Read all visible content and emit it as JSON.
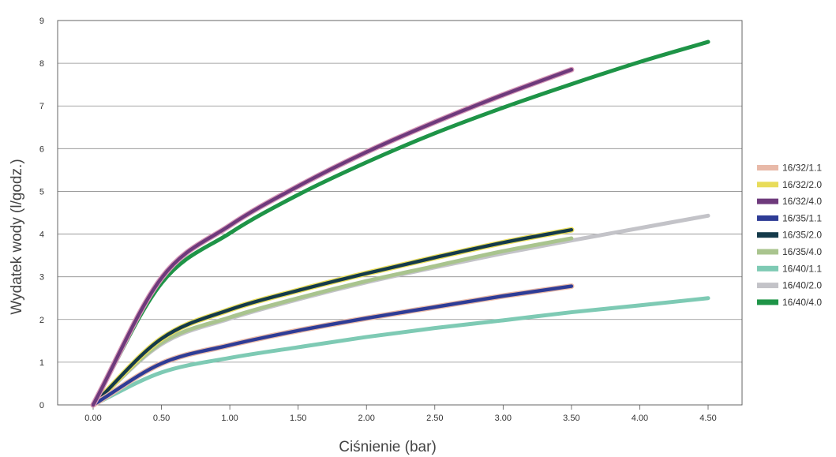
{
  "chart_data": {
    "type": "line",
    "xlabel": "Ciśnienie (bar)",
    "ylabel": "Wydatek wody (l/godz.)",
    "xlim": [
      0,
      4.5
    ],
    "ylim": [
      0,
      9
    ],
    "x_ticks": [
      "0.00",
      "0.50",
      "1.00",
      "1.50",
      "2.00",
      "2.50",
      "3.00",
      "3.50",
      "4.00",
      "4.50"
    ],
    "y_ticks": [
      "0",
      "1",
      "2",
      "3",
      "4",
      "5",
      "6",
      "7",
      "8",
      "9"
    ],
    "grid": "horizontal",
    "legend_position": "right",
    "series": [
      {
        "name": "16/32/1.1",
        "color": "#e8b9a8",
        "x": [
          0,
          0.5,
          1.0,
          1.5,
          2.0,
          2.5,
          3.0,
          3.5
        ],
        "values": [
          0,
          0.97,
          1.4,
          1.74,
          2.03,
          2.29,
          2.55,
          2.78
        ]
      },
      {
        "name": "16/32/2.0",
        "color": "#e8dc5a",
        "x": [
          0,
          0.5,
          1.0,
          1.5,
          2.0,
          2.5,
          3.0,
          3.5
        ],
        "values": [
          0,
          1.55,
          2.23,
          2.68,
          3.08,
          3.45,
          3.8,
          4.1
        ]
      },
      {
        "name": "16/32/4.0",
        "color": "#6e3a7c",
        "x": [
          0,
          0.5,
          1.0,
          1.5,
          2.0,
          2.5,
          3.0,
          3.5
        ],
        "values": [
          0,
          2.97,
          4.2,
          5.12,
          5.92,
          6.62,
          7.26,
          7.85
        ]
      },
      {
        "name": "16/35/1.1",
        "color": "#2e3c96",
        "x": [
          0,
          0.5,
          1.0,
          1.5,
          2.0,
          2.5,
          3.0,
          3.5
        ],
        "values": [
          0,
          0.97,
          1.4,
          1.74,
          2.03,
          2.29,
          2.55,
          2.78
        ]
      },
      {
        "name": "16/35/2.0",
        "color": "#143a4a",
        "x": [
          0,
          0.5,
          1.0,
          1.5,
          2.0,
          2.5,
          3.0,
          3.5
        ],
        "values": [
          0,
          1.55,
          2.23,
          2.68,
          3.08,
          3.45,
          3.8,
          4.1
        ]
      },
      {
        "name": "16/35/4.0",
        "color": "#a9c48e",
        "x": [
          0,
          0.5,
          1.0,
          1.5,
          2.0,
          2.5,
          3.0,
          3.5
        ],
        "values": [
          0,
          1.45,
          2.05,
          2.5,
          2.9,
          3.25,
          3.6,
          3.9
        ]
      },
      {
        "name": "16/40/1.1",
        "color": "#7ecab4",
        "x": [
          0,
          0.5,
          1.0,
          1.5,
          2.0,
          2.5,
          3.0,
          3.5,
          4.0,
          4.5
        ],
        "values": [
          0,
          0.76,
          1.1,
          1.35,
          1.59,
          1.8,
          1.98,
          2.17,
          2.33,
          2.5
        ]
      },
      {
        "name": "16/40/2.0",
        "color": "#c3c3c8",
        "x": [
          0,
          0.5,
          1.0,
          1.5,
          2.0,
          2.5,
          3.0,
          3.5,
          4.0,
          4.5
        ],
        "values": [
          0,
          1.42,
          2.02,
          2.47,
          2.87,
          3.22,
          3.55,
          3.85,
          4.14,
          4.43
        ]
      },
      {
        "name": "16/40/4.0",
        "color": "#1e9447",
        "x": [
          0,
          0.5,
          1.0,
          1.5,
          2.0,
          2.5,
          3.0,
          3.5,
          4.0,
          4.5
        ],
        "values": [
          0,
          2.85,
          4.02,
          4.92,
          5.68,
          6.36,
          6.96,
          7.51,
          8.03,
          8.5
        ]
      }
    ]
  }
}
